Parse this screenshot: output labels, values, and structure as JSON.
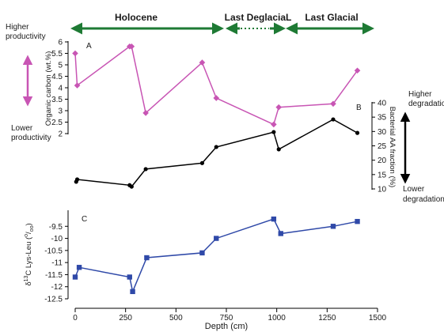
{
  "periods": [
    {
      "label": "Holocene"
    },
    {
      "label": "Last DeglaciaL"
    },
    {
      "label": "Last Glacial"
    }
  ],
  "side_labels": {
    "higher_productivity": [
      "Higher",
      "productivity"
    ],
    "lower_productivity": [
      "Lower",
      "productivity"
    ],
    "higher_degradation": [
      "Higher",
      "degradation"
    ],
    "lower_degradation": [
      "Lower",
      "degradation"
    ]
  },
  "colors": {
    "period_arrow": "#1e7a34",
    "series_a": "#c855b4",
    "series_b": "#000000",
    "series_c": "#2f49a8",
    "productivity_arrow": "#c855b4",
    "degradation_arrow": "#000000"
  },
  "chart_data": [
    {
      "type": "line",
      "panel_label": "A",
      "ylabel": "Organic carbon (wt.%)",
      "ylim": [
        2,
        6
      ],
      "yticks": [
        "2",
        "2.5",
        "3",
        "3.5",
        "4",
        "4.5",
        "5",
        "5.5",
        "6"
      ],
      "axis_side": "left",
      "marker": "diamond",
      "points": [
        [
          0,
          5.5
        ],
        [
          10,
          4.1
        ],
        [
          270,
          5.8
        ],
        [
          280,
          5.8
        ],
        [
          350,
          2.9
        ],
        [
          630,
          5.1
        ],
        [
          700,
          3.55
        ],
        [
          985,
          2.4
        ],
        [
          1010,
          3.15
        ],
        [
          1280,
          3.3
        ],
        [
          1400,
          4.75
        ]
      ]
    },
    {
      "type": "line",
      "panel_label": "B",
      "ylabel": "Bacterial AA fraction (%)",
      "ylim": [
        10,
        40
      ],
      "yticks": [
        "10",
        "15",
        "20",
        "25",
        "30",
        "35",
        "40"
      ],
      "axis_side": "right",
      "marker": "circle",
      "points": [
        [
          5,
          12.5
        ],
        [
          10,
          13.3
        ],
        [
          270,
          11.3
        ],
        [
          280,
          10.8
        ],
        [
          350,
          16.9
        ],
        [
          630,
          19
        ],
        [
          700,
          24.6
        ],
        [
          985,
          29.8
        ],
        [
          1010,
          23.8
        ],
        [
          1280,
          34.2
        ],
        [
          1400,
          29.5
        ]
      ]
    },
    {
      "type": "line",
      "panel_label": "C",
      "ylabel": "δ13C Lys-Leu (‰)",
      "ylim": [
        -12.5,
        -9
      ],
      "yticks": [
        "-12.5",
        "-12",
        "-11.5",
        "-11",
        "-10.5",
        "-10",
        "-9.5"
      ],
      "axis_side": "left",
      "marker": "square",
      "points": [
        [
          0,
          -11.6
        ],
        [
          20,
          -11.2
        ],
        [
          270,
          -11.6
        ],
        [
          285,
          -12.2
        ],
        [
          355,
          -10.8
        ],
        [
          630,
          -10.6
        ],
        [
          700,
          -10
        ],
        [
          985,
          -9.2
        ],
        [
          1020,
          -9.8
        ],
        [
          1280,
          -9.5
        ],
        [
          1400,
          -9.3
        ]
      ]
    }
  ],
  "x_axis": {
    "label": "Depth (cm)",
    "xlim": [
      0,
      1500
    ],
    "ticks": [
      "0",
      "250",
      "500",
      "750",
      "1000",
      "1250",
      "1500"
    ]
  }
}
